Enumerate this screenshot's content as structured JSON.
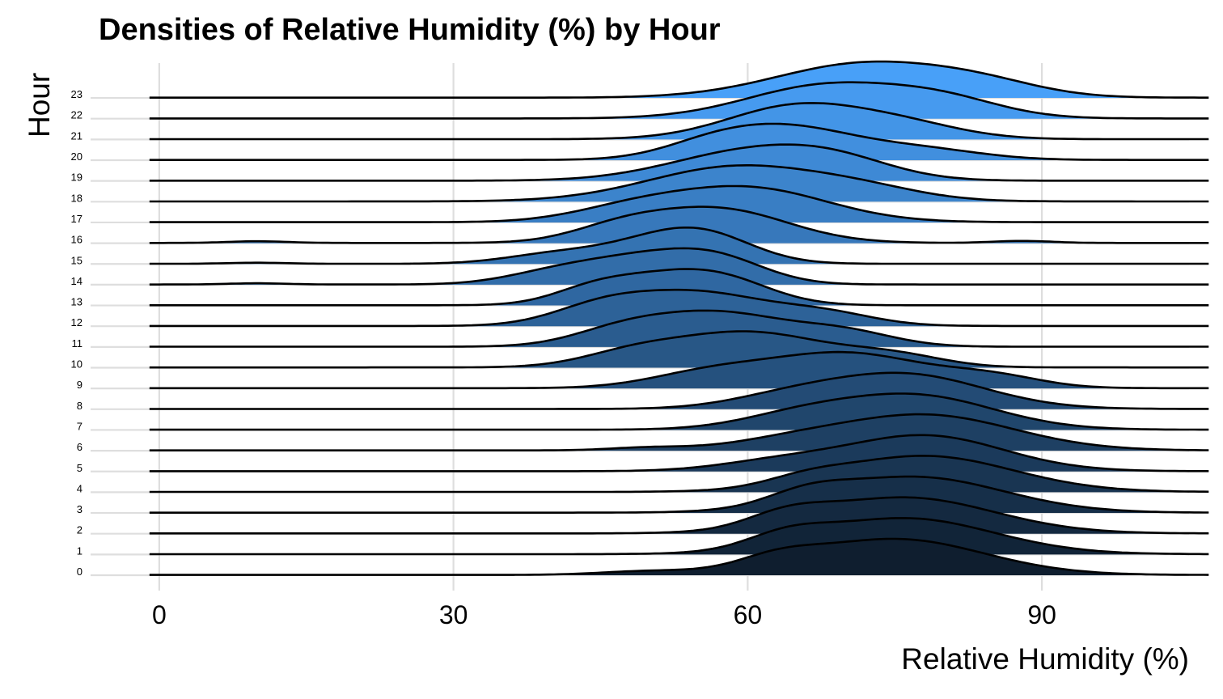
{
  "chart_data": {
    "type": "ridgeline",
    "title": "Densities of Relative Humidity (%) by Hour",
    "xlabel": "Relative Humidity (%)",
    "ylabel": "Hour",
    "x_ticks": [
      0,
      30,
      60,
      90
    ],
    "xlim": [
      -7,
      105
    ],
    "x_data_range": [
      -1,
      107
    ],
    "categories": [
      "0",
      "1",
      "2",
      "3",
      "4",
      "5",
      "6",
      "7",
      "8",
      "9",
      "10",
      "11",
      "12",
      "13",
      "14",
      "15",
      "16",
      "17",
      "18",
      "19",
      "20",
      "21",
      "22",
      "23"
    ],
    "fill_gradient": {
      "low": "#0f1e2f",
      "high": "#48a0f8"
    },
    "grid": true,
    "legend": "none",
    "series": [
      {
        "name": "0",
        "peaks": [
          {
            "mu": 75,
            "sigma": 9,
            "h": 1.0
          },
          {
            "mu": 63,
            "sigma": 4,
            "h": 0.3
          },
          {
            "mu": 50,
            "sigma": 5,
            "h": 0.1
          }
        ]
      },
      {
        "name": "1",
        "peaks": [
          {
            "mu": 76,
            "sigma": 9,
            "h": 1.0
          },
          {
            "mu": 64,
            "sigma": 4,
            "h": 0.35
          }
        ]
      },
      {
        "name": "2",
        "peaks": [
          {
            "mu": 76,
            "sigma": 9,
            "h": 1.0
          },
          {
            "mu": 64,
            "sigma": 4,
            "h": 0.35
          }
        ]
      },
      {
        "name": "3",
        "peaks": [
          {
            "mu": 77,
            "sigma": 9,
            "h": 0.95
          },
          {
            "mu": 66,
            "sigma": 4,
            "h": 0.3
          }
        ]
      },
      {
        "name": "4",
        "peaks": [
          {
            "mu": 78,
            "sigma": 9,
            "h": 1.0
          },
          {
            "mu": 66,
            "sigma": 4,
            "h": 0.2
          }
        ]
      },
      {
        "name": "5",
        "peaks": [
          {
            "mu": 78,
            "sigma": 8,
            "h": 1.0
          },
          {
            "mu": 63,
            "sigma": 6,
            "h": 0.25
          }
        ]
      },
      {
        "name": "6",
        "peaks": [
          {
            "mu": 78,
            "sigma": 9,
            "h": 1.0
          },
          {
            "mu": 64,
            "sigma": 6,
            "h": 0.2
          },
          {
            "mu": 50,
            "sigma": 4,
            "h": 0.08
          }
        ]
      },
      {
        "name": "7",
        "peaks": [
          {
            "mu": 77,
            "sigma": 8,
            "h": 1.0
          },
          {
            "mu": 65,
            "sigma": 6,
            "h": 0.35
          }
        ]
      },
      {
        "name": "8",
        "peaks": [
          {
            "mu": 76,
            "sigma": 8,
            "h": 1.0
          },
          {
            "mu": 64,
            "sigma": 6,
            "h": 0.3
          }
        ]
      },
      {
        "name": "9",
        "peaks": [
          {
            "mu": 70,
            "sigma": 8,
            "h": 1.0
          },
          {
            "mu": 56,
            "sigma": 6,
            "h": 0.4
          },
          {
            "mu": 85,
            "sigma": 5,
            "h": 0.3
          }
        ]
      },
      {
        "name": "10",
        "peaks": [
          {
            "mu": 60,
            "sigma": 8,
            "h": 1.0
          },
          {
            "mu": 48,
            "sigma": 5,
            "h": 0.3
          },
          {
            "mu": 75,
            "sigma": 5,
            "h": 0.3
          }
        ]
      },
      {
        "name": "11",
        "peaks": [
          {
            "mu": 57,
            "sigma": 7,
            "h": 1.0
          },
          {
            "mu": 47,
            "sigma": 5,
            "h": 0.4
          },
          {
            "mu": 70,
            "sigma": 5,
            "h": 0.4
          }
        ]
      },
      {
        "name": "12",
        "peaks": [
          {
            "mu": 55,
            "sigma": 7,
            "h": 1.0
          },
          {
            "mu": 45,
            "sigma": 5,
            "h": 0.5
          },
          {
            "mu": 68,
            "sigma": 5,
            "h": 0.35
          }
        ]
      },
      {
        "name": "13",
        "peaks": [
          {
            "mu": 51,
            "sigma": 6,
            "h": 1.0
          },
          {
            "mu": 58,
            "sigma": 5,
            "h": 0.7
          },
          {
            "mu": 44,
            "sigma": 4,
            "h": 0.4
          }
        ]
      },
      {
        "name": "14",
        "peaks": [
          {
            "mu": 49,
            "sigma": 6,
            "h": 1.0
          },
          {
            "mu": 57,
            "sigma": 5,
            "h": 0.9
          },
          {
            "mu": 40,
            "sigma": 5,
            "h": 0.4
          },
          {
            "mu": 10,
            "sigma": 3,
            "h": 0.05
          }
        ]
      },
      {
        "name": "15",
        "peaks": [
          {
            "mu": 51,
            "sigma": 6,
            "h": 1.0
          },
          {
            "mu": 56,
            "sigma": 5,
            "h": 0.9
          },
          {
            "mu": 40,
            "sigma": 5,
            "h": 0.4
          },
          {
            "mu": 10,
            "sigma": 3,
            "h": 0.05
          }
        ]
      },
      {
        "name": "16",
        "peaks": [
          {
            "mu": 57,
            "sigma": 7,
            "h": 1.0
          },
          {
            "mu": 47,
            "sigma": 5,
            "h": 0.4
          },
          {
            "mu": 88,
            "sigma": 3,
            "h": 0.06
          },
          {
            "mu": 10,
            "sigma": 3,
            "h": 0.05
          }
        ]
      },
      {
        "name": "17",
        "peaks": [
          {
            "mu": 60,
            "sigma": 8,
            "h": 1.0
          },
          {
            "mu": 48,
            "sigma": 6,
            "h": 0.35
          }
        ]
      },
      {
        "name": "18",
        "peaks": [
          {
            "mu": 59,
            "sigma": 9,
            "h": 1.0
          },
          {
            "mu": 72,
            "sigma": 6,
            "h": 0.25
          }
        ]
      },
      {
        "name": "19",
        "peaks": [
          {
            "mu": 60,
            "sigma": 8,
            "h": 0.9
          },
          {
            "mu": 69,
            "sigma": 6,
            "h": 0.5
          }
        ]
      },
      {
        "name": "20",
        "peaks": [
          {
            "mu": 64,
            "sigma": 7,
            "h": 1.0
          },
          {
            "mu": 56,
            "sigma": 5,
            "h": 0.3
          },
          {
            "mu": 78,
            "sigma": 6,
            "h": 0.3
          }
        ]
      },
      {
        "name": "21",
        "peaks": [
          {
            "mu": 65,
            "sigma": 7,
            "h": 1.0
          },
          {
            "mu": 76,
            "sigma": 6,
            "h": 0.4
          }
        ]
      },
      {
        "name": "22",
        "peaks": [
          {
            "mu": 68,
            "sigma": 8,
            "h": 1.0
          },
          {
            "mu": 80,
            "sigma": 6,
            "h": 0.5
          }
        ]
      },
      {
        "name": "23",
        "peaks": [
          {
            "mu": 72,
            "sigma": 9,
            "h": 1.0
          },
          {
            "mu": 84,
            "sigma": 6,
            "h": 0.3
          }
        ]
      }
    ]
  }
}
